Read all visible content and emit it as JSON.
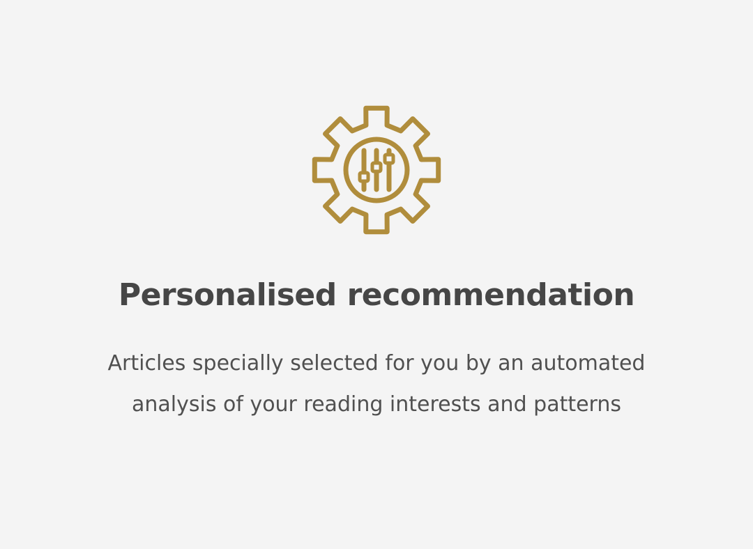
{
  "feature": {
    "icon": "gear-sliders-icon",
    "accent_color": "#b08d3c",
    "title": "Personalised recommendation",
    "description": "Articles specially selected for you by an automated analysis of your reading interests and patterns"
  }
}
